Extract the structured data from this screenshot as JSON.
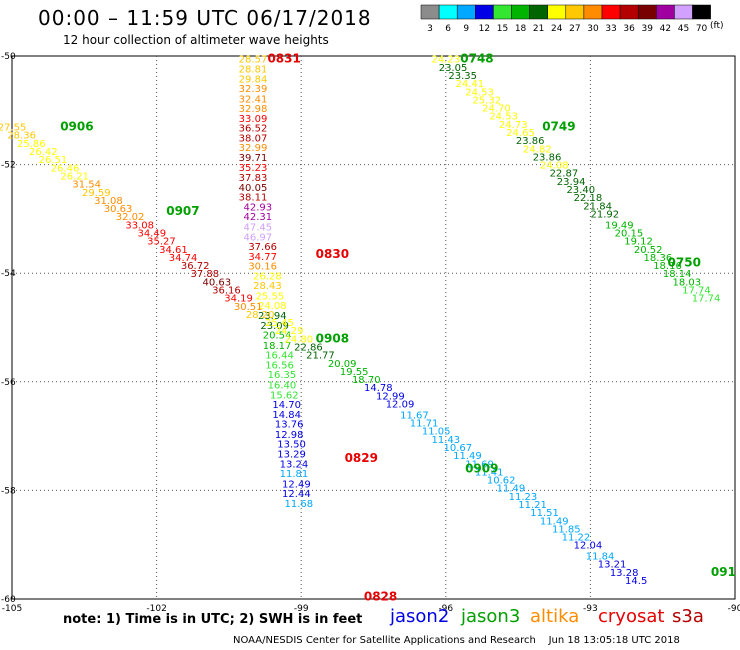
{
  "header": {
    "title": "00:00 – 11:59 UTC 06/17/2018",
    "subtitle": "12 hour collection of altimeter wave heights"
  },
  "color_scale": {
    "unit": "(ft)",
    "bins": [
      {
        "label": "3",
        "color": "#8c8c8c"
      },
      {
        "label": "6",
        "color": "#00ffff"
      },
      {
        "label": "9",
        "color": "#00a8ff"
      },
      {
        "label": "12",
        "color": "#0000e6"
      },
      {
        "label": "15",
        "color": "#32e632"
      },
      {
        "label": "18",
        "color": "#00b400"
      },
      {
        "label": "21",
        "color": "#006400"
      },
      {
        "label": "24",
        "color": "#ffff00"
      },
      {
        "label": "27",
        "color": "#ffc800"
      },
      {
        "label": "30",
        "color": "#ff8c00"
      },
      {
        "label": "33",
        "color": "#ff0000"
      },
      {
        "label": "36",
        "color": "#b40000"
      },
      {
        "label": "39",
        "color": "#780000"
      },
      {
        "label": "42",
        "color": "#a000a0"
      },
      {
        "label": "45",
        "color": "#d2a0ff"
      },
      {
        "label": "70",
        "color": "#000000"
      }
    ]
  },
  "footer": {
    "note": "note: 1) Time is in UTC; 2) SWH is in feet",
    "credit": "NOAA/NESDIS Center for Satellite Applications and Research    Jun 18 13:05:18 UTC 2018"
  },
  "legend": [
    {
      "name": "jason2",
      "color": "#0000e6"
    },
    {
      "name": "jason3",
      "color": "#00a000"
    },
    {
      "name": "altika",
      "color": "#ff8c00"
    },
    {
      "name": "cryosat",
      "color": "#e60000"
    },
    {
      "name": "s3a",
      "color": "#b40000"
    }
  ],
  "chart_data": {
    "type": "scatter",
    "title": "00:00 – 11:59 UTC 06/17/2018",
    "subtitle": "12 hour collection of altimeter wave heights",
    "x_axis": {
      "ticks": [
        "-105",
        "-102",
        "-99",
        "-96",
        "-93",
        "-90"
      ],
      "range": [
        -105,
        -90
      ]
    },
    "y_axis": {
      "ticks": [
        "-50",
        "-52",
        "-54",
        "-56",
        "-58",
        "-60"
      ],
      "range": [
        -60,
        -50
      ]
    },
    "grid": "dotted",
    "time_labels": [
      {
        "text": "0831",
        "lon": -99.7,
        "lat": -50.05
      },
      {
        "text": "0830",
        "lon": -98.7,
        "lat": -53.65
      },
      {
        "text": "0829",
        "lon": -98.1,
        "lat": -57.4
      },
      {
        "text": "0828",
        "lon": -97.7,
        "lat": -59.95
      },
      {
        "text": "0906",
        "lon": -104.0,
        "lat": -51.3
      },
      {
        "text": "0907",
        "lon": -101.8,
        "lat": -52.85
      },
      {
        "text": "0908",
        "lon": -98.7,
        "lat": -55.2
      },
      {
        "text": "0909",
        "lon": -95.6,
        "lat": -57.6
      },
      {
        "text": "0748",
        "lon": -95.7,
        "lat": -50.05
      },
      {
        "text": "0749",
        "lon": -94.0,
        "lat": -51.3
      },
      {
        "text": "0750",
        "lon": -91.4,
        "lat": -53.8
      },
      {
        "text": "091",
        "lon": -90.5,
        "lat": -59.5
      }
    ],
    "series": [
      {
        "name": "0828-0831",
        "points": [
          {
            "lon": -100.0,
            "lat": -50.05,
            "v": "28.57"
          },
          {
            "lon": -100.0,
            "lat": -50.23,
            "v": "28.81"
          },
          {
            "lon": -100.0,
            "lat": -50.41,
            "v": "29.84"
          },
          {
            "lon": -100.0,
            "lat": -50.59,
            "v": "32.39"
          },
          {
            "lon": -100.0,
            "lat": -50.78,
            "v": "32.41"
          },
          {
            "lon": -100.0,
            "lat": -50.96,
            "v": "32.98"
          },
          {
            "lon": -100.0,
            "lat": -51.14,
            "v": "33.09"
          },
          {
            "lon": -100.0,
            "lat": -51.32,
            "v": "36.52"
          },
          {
            "lon": -100.0,
            "lat": -51.5,
            "v": "38.07"
          },
          {
            "lon": -100.0,
            "lat": -51.68,
            "v": "32.99"
          },
          {
            "lon": -100.0,
            "lat": -51.86,
            "v": "39.71"
          },
          {
            "lon": -100.0,
            "lat": -52.04,
            "v": "35.23"
          },
          {
            "lon": -100.0,
            "lat": -52.23,
            "v": "37.83"
          },
          {
            "lon": -100.0,
            "lat": -52.41,
            "v": "40.05"
          },
          {
            "lon": -100.0,
            "lat": -52.59,
            "v": "38.11"
          },
          {
            "lon": -99.9,
            "lat": -52.77,
            "v": "42.93"
          },
          {
            "lon": -99.9,
            "lat": -52.95,
            "v": "42.31"
          },
          {
            "lon": -99.9,
            "lat": -53.14,
            "v": "47.45"
          },
          {
            "lon": -99.9,
            "lat": -53.32,
            "v": "46.97"
          },
          {
            "lon": -99.8,
            "lat": -53.5,
            "v": "37.66"
          },
          {
            "lon": -99.8,
            "lat": -53.68,
            "v": "34.77"
          },
          {
            "lon": -99.8,
            "lat": -53.86,
            "v": "30.16"
          },
          {
            "lon": -99.7,
            "lat": -54.04,
            "v": "26.28"
          },
          {
            "lon": -99.7,
            "lat": -54.22,
            "v": "28.43"
          },
          {
            "lon": -99.65,
            "lat": -54.41,
            "v": "25.55"
          },
          {
            "lon": -99.6,
            "lat": -54.59,
            "v": "24.08"
          },
          {
            "lon": -99.6,
            "lat": -54.77,
            "v": "23.94"
          },
          {
            "lon": -99.55,
            "lat": -54.95,
            "v": "23.09"
          },
          {
            "lon": -99.5,
            "lat": -55.13,
            "v": "20.54"
          },
          {
            "lon": -99.5,
            "lat": -55.32,
            "v": "18.17"
          },
          {
            "lon": -99.45,
            "lat": -55.5,
            "v": "16.44"
          },
          {
            "lon": -99.45,
            "lat": -55.68,
            "v": "16.56"
          },
          {
            "lon": -99.4,
            "lat": -55.86,
            "v": "16.35"
          },
          {
            "lon": -99.4,
            "lat": -56.05,
            "v": "16.40"
          },
          {
            "lon": -99.35,
            "lat": -56.23,
            "v": "15.62"
          },
          {
            "lon": -99.3,
            "lat": -56.41,
            "v": "14.70"
          },
          {
            "lon": -99.3,
            "lat": -56.59,
            "v": "14.84"
          },
          {
            "lon": -99.25,
            "lat": -56.77,
            "v": "13.76"
          },
          {
            "lon": -99.25,
            "lat": -56.96,
            "v": "12.98"
          },
          {
            "lon": -99.2,
            "lat": -57.14,
            "v": "13.50"
          },
          {
            "lon": -99.2,
            "lat": -57.32,
            "v": "13.29"
          },
          {
            "lon": -99.15,
            "lat": -57.5,
            "v": "13.24"
          },
          {
            "lon": -99.15,
            "lat": -57.68,
            "v": "11.81"
          },
          {
            "lon": -99.1,
            "lat": -57.87,
            "v": "12.49"
          },
          {
            "lon": -99.1,
            "lat": -58.05,
            "v": "12.44"
          },
          {
            "lon": -99.05,
            "lat": -58.23,
            "v": "11.68"
          }
        ]
      },
      {
        "name": "0906-0909",
        "points": [
          {
            "lon": -105.0,
            "lat": -51.3,
            "v": "27.55"
          },
          {
            "lon": -104.8,
            "lat": -51.45,
            "v": "28.36"
          },
          {
            "lon": -104.6,
            "lat": -51.6,
            "v": "25.86"
          },
          {
            "lon": -104.35,
            "lat": -51.75,
            "v": "26.42"
          },
          {
            "lon": -104.15,
            "lat": -51.9,
            "v": "26.51"
          },
          {
            "lon": -103.9,
            "lat": -52.05,
            "v": "26.46"
          },
          {
            "lon": -103.7,
            "lat": -52.2,
            "v": "26.21"
          },
          {
            "lon": -103.45,
            "lat": -52.35,
            "v": "31.54"
          },
          {
            "lon": -103.25,
            "lat": -52.5,
            "v": "29.59"
          },
          {
            "lon": -103.0,
            "lat": -52.65,
            "v": "31.08"
          },
          {
            "lon": -102.8,
            "lat": -52.8,
            "v": "30.63"
          },
          {
            "lon": -102.55,
            "lat": -52.95,
            "v": "32.02"
          },
          {
            "lon": -102.35,
            "lat": -53.1,
            "v": "33.08"
          },
          {
            "lon": -102.1,
            "lat": -53.25,
            "v": "34.49"
          },
          {
            "lon": -101.9,
            "lat": -53.4,
            "v": "35.27"
          },
          {
            "lon": -101.65,
            "lat": -53.55,
            "v": "34.61"
          },
          {
            "lon": -101.45,
            "lat": -53.7,
            "v": "34.74"
          },
          {
            "lon": -101.2,
            "lat": -53.85,
            "v": "36.72"
          },
          {
            "lon": -101.0,
            "lat": -54.0,
            "v": "37.88"
          },
          {
            "lon": -100.75,
            "lat": -54.15,
            "v": "40.63"
          },
          {
            "lon": -100.55,
            "lat": -54.3,
            "v": "36.16"
          },
          {
            "lon": -100.3,
            "lat": -54.45,
            "v": "34.19"
          },
          {
            "lon": -100.1,
            "lat": -54.6,
            "v": "30.51"
          },
          {
            "lon": -99.85,
            "lat": -54.75,
            "v": "28.20"
          },
          {
            "lon": -99.45,
            "lat": -54.9,
            "v": "25.45"
          },
          {
            "lon": -99.25,
            "lat": -55.05,
            "v": "24.29"
          },
          {
            "lon": -99.05,
            "lat": -55.2,
            "v": "24.80"
          },
          {
            "lon": -98.85,
            "lat": -55.35,
            "v": "22.86"
          },
          {
            "lon": -98.6,
            "lat": -55.5,
            "v": "21.77"
          },
          {
            "lon": -98.15,
            "lat": -55.65,
            "v": "20.09"
          },
          {
            "lon": -97.9,
            "lat": -55.8,
            "v": "19.55"
          },
          {
            "lon": -97.65,
            "lat": -55.95,
            "v": "18.70"
          },
          {
            "lon": -97.4,
            "lat": -56.1,
            "v": "14.78"
          },
          {
            "lon": -97.15,
            "lat": -56.25,
            "v": "12.99"
          },
          {
            "lon": -96.95,
            "lat": -56.4,
            "v": "12.09"
          },
          {
            "lon": -96.65,
            "lat": -56.6,
            "v": "11.67"
          },
          {
            "lon": -96.45,
            "lat": -56.75,
            "v": "11.71"
          },
          {
            "lon": -96.2,
            "lat": -56.9,
            "v": "11.05"
          },
          {
            "lon": -96.0,
            "lat": -57.05,
            "v": "11.43"
          },
          {
            "lon": -95.75,
            "lat": -57.2,
            "v": "10.67"
          },
          {
            "lon": -95.55,
            "lat": -57.35,
            "v": "11.49"
          },
          {
            "lon": -95.3,
            "lat": -57.5,
            "v": "11.69"
          },
          {
            "lon": -95.1,
            "lat": -57.65,
            "v": "11.41"
          },
          {
            "lon": -94.85,
            "lat": -57.8,
            "v": "10.62"
          },
          {
            "lon": -94.65,
            "lat": -57.95,
            "v": "11.49"
          },
          {
            "lon": -94.4,
            "lat": -58.1,
            "v": "11.23"
          },
          {
            "lon": -94.2,
            "lat": -58.25,
            "v": "11.21"
          },
          {
            "lon": -93.95,
            "lat": -58.4,
            "v": "11.51"
          },
          {
            "lon": -93.75,
            "lat": -58.55,
            "v": "11.49"
          },
          {
            "lon": -93.5,
            "lat": -58.7,
            "v": "11.85"
          },
          {
            "lon": -93.3,
            "lat": -58.85,
            "v": "11.22"
          },
          {
            "lon": -93.05,
            "lat": -59.0,
            "v": "12.04"
          },
          {
            "lon": -92.8,
            "lat": -59.2,
            "v": "11.84"
          },
          {
            "lon": -92.55,
            "lat": -59.35,
            "v": "13.21"
          },
          {
            "lon": -92.3,
            "lat": -59.5,
            "v": "13.28"
          },
          {
            "lon": -92.05,
            "lat": -59.65,
            "v": "14.5"
          }
        ]
      },
      {
        "name": "0748-0750",
        "points": [
          {
            "lon": -96.0,
            "lat": -50.05,
            "v": "24.23"
          },
          {
            "lon": -95.85,
            "lat": -50.2,
            "v": "23.05"
          },
          {
            "lon": -95.65,
            "lat": -50.35,
            "v": "23.35"
          },
          {
            "lon": -95.5,
            "lat": -50.5,
            "v": "24.41"
          },
          {
            "lon": -95.3,
            "lat": -50.65,
            "v": "24.53"
          },
          {
            "lon": -95.15,
            "lat": -50.8,
            "v": "25.32"
          },
          {
            "lon": -94.95,
            "lat": -50.95,
            "v": "24.70"
          },
          {
            "lon": -94.8,
            "lat": -51.1,
            "v": "24.53"
          },
          {
            "lon": -94.6,
            "lat": -51.25,
            "v": "24.73"
          },
          {
            "lon": -94.45,
            "lat": -51.4,
            "v": "24.65"
          },
          {
            "lon": -94.25,
            "lat": -51.55,
            "v": "23.86"
          },
          {
            "lon": -94.1,
            "lat": -51.7,
            "v": "24.82"
          },
          {
            "lon": -93.9,
            "lat": -51.85,
            "v": "23.86"
          },
          {
            "lon": -93.75,
            "lat": -52.0,
            "v": "24.08"
          },
          {
            "lon": -93.55,
            "lat": -52.15,
            "v": "22.87"
          },
          {
            "lon": -93.4,
            "lat": -52.3,
            "v": "23.94"
          },
          {
            "lon": -93.2,
            "lat": -52.45,
            "v": "23.40"
          },
          {
            "lon": -93.05,
            "lat": -52.6,
            "v": "22.18"
          },
          {
            "lon": -92.85,
            "lat": -52.75,
            "v": "21.84"
          },
          {
            "lon": -92.7,
            "lat": -52.9,
            "v": "21.92"
          },
          {
            "lon": -92.4,
            "lat": -53.1,
            "v": "19.49"
          },
          {
            "lon": -92.2,
            "lat": -53.25,
            "v": "20.15"
          },
          {
            "lon": -92.0,
            "lat": -53.4,
            "v": "19.12"
          },
          {
            "lon": -91.8,
            "lat": -53.55,
            "v": "20.52"
          },
          {
            "lon": -91.6,
            "lat": -53.7,
            "v": "18.36"
          },
          {
            "lon": -91.4,
            "lat": -53.85,
            "v": "18.16"
          },
          {
            "lon": -91.2,
            "lat": -54.0,
            "v": "18.14"
          },
          {
            "lon": -91.0,
            "lat": -54.15,
            "v": "18.03"
          },
          {
            "lon": -90.8,
            "lat": -54.3,
            "v": "17.74"
          },
          {
            "lon": -90.6,
            "lat": -54.45,
            "v": "17.74"
          }
        ]
      }
    ]
  }
}
